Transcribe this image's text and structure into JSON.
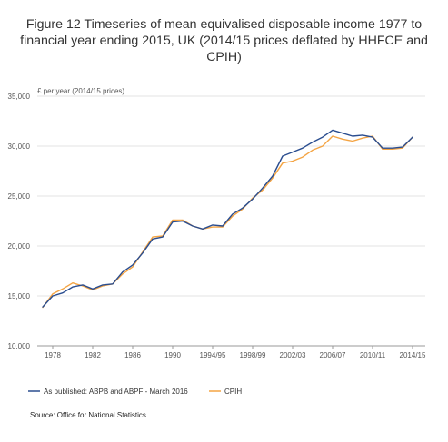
{
  "chart_data": {
    "type": "line",
    "title": "Figure 12 Timeseries of mean equivalised disposable income 1977 to financial year ending 2015, UK (2014/15 prices deflated by HHFCE and CPIH)",
    "ylabel": "£ per year (2014/15 prices)",
    "xlabel": "",
    "ylim": [
      10000,
      35000
    ],
    "y_ticks": [
      "10,000",
      "15,000",
      "20,000",
      "25,000",
      "30,000",
      "35,000"
    ],
    "y_tick_values": [
      10000,
      15000,
      20000,
      25000,
      30000,
      35000
    ],
    "x_tick_labels": [
      "1978",
      "1982",
      "1986",
      "1990",
      "1994/95",
      "1998/99",
      "2002/03",
      "2006/07",
      "2010/11",
      "2014/15"
    ],
    "x_tick_index": [
      1,
      5,
      9,
      13,
      17,
      21,
      25,
      29,
      33,
      37
    ],
    "grid": "horizontal",
    "legend_position": "bottom-left",
    "series": [
      {
        "name": "As published: ABPB and ABPF - March 2016",
        "color": "#2a4d8f",
        "values": [
          13900,
          15000,
          15300,
          15900,
          16100,
          15700,
          16100,
          16200,
          17400,
          18100,
          19300,
          20700,
          20900,
          22400,
          22500,
          22000,
          21700,
          22100,
          22000,
          23200,
          23800,
          24700,
          25800,
          27000,
          29000,
          29400,
          29800,
          30400,
          30900,
          31600,
          31300,
          31000,
          31100,
          30900,
          29800,
          29800,
          29900,
          30900
        ]
      },
      {
        "name": "CPIH",
        "color": "#f4a443",
        "values": [
          13850,
          15200,
          15700,
          16300,
          16000,
          15600,
          16000,
          16200,
          17200,
          17900,
          19400,
          20900,
          21000,
          22600,
          22600,
          22000,
          21700,
          21900,
          21900,
          23000,
          23700,
          24800,
          25600,
          26800,
          28300,
          28500,
          28900,
          29600,
          30000,
          31000,
          30700,
          30500,
          30800,
          31000,
          29700,
          29700,
          29800,
          30900
        ]
      }
    ],
    "source": "Source: Office for National Statistics"
  }
}
